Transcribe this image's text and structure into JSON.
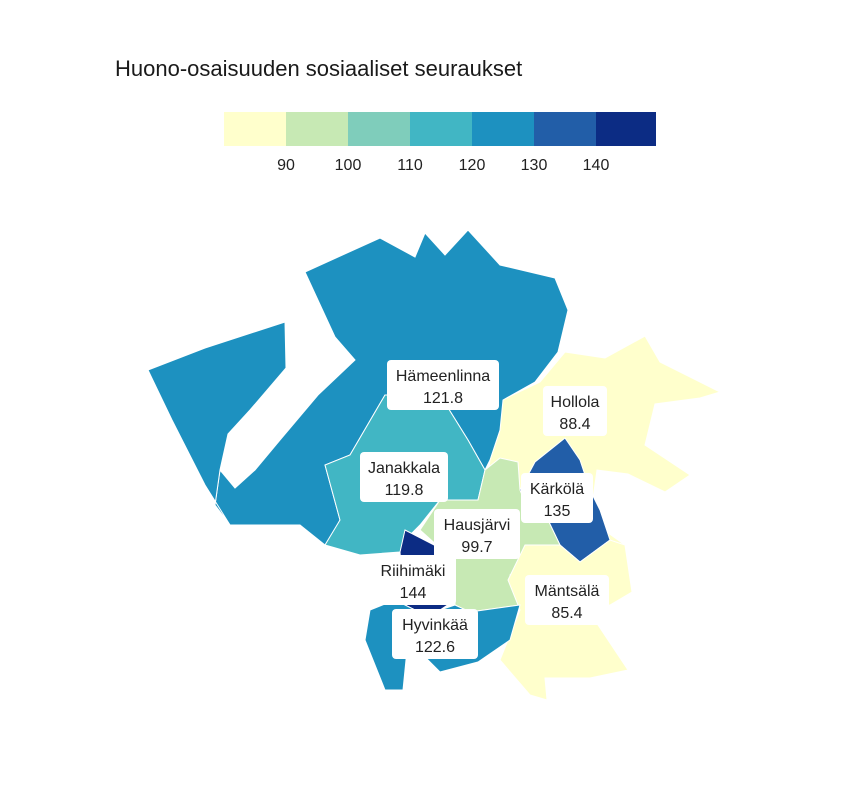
{
  "title": "Huono-osaisuuden sosiaaliset seuraukset",
  "legend": {
    "colors": [
      "#ffffcc",
      "#c7e9b4",
      "#7fcdbb",
      "#41b6c4",
      "#1d91c0",
      "#225ea8",
      "#0c2c84"
    ],
    "ticks": [
      "90",
      "100",
      "110",
      "120",
      "130",
      "140"
    ]
  },
  "regions": [
    {
      "name": "Hämeenlinna",
      "value": "121.8",
      "color": "#1d91c0"
    },
    {
      "name": "Hollola",
      "value": "88.4",
      "color": "#ffffcc"
    },
    {
      "name": "Janakkala",
      "value": "119.8",
      "color": "#41b6c4"
    },
    {
      "name": "Kärkölä",
      "value": "135",
      "color": "#225ea8"
    },
    {
      "name": "Hausjärvi",
      "value": "99.7",
      "color": "#c7e9b4"
    },
    {
      "name": "Riihimäki",
      "value": "144",
      "color": "#0c2c84"
    },
    {
      "name": "Mäntsälä",
      "value": "85.4",
      "color": "#ffffcc"
    },
    {
      "name": "Hyvinkää",
      "value": "122.6",
      "color": "#1d91c0"
    }
  ]
}
